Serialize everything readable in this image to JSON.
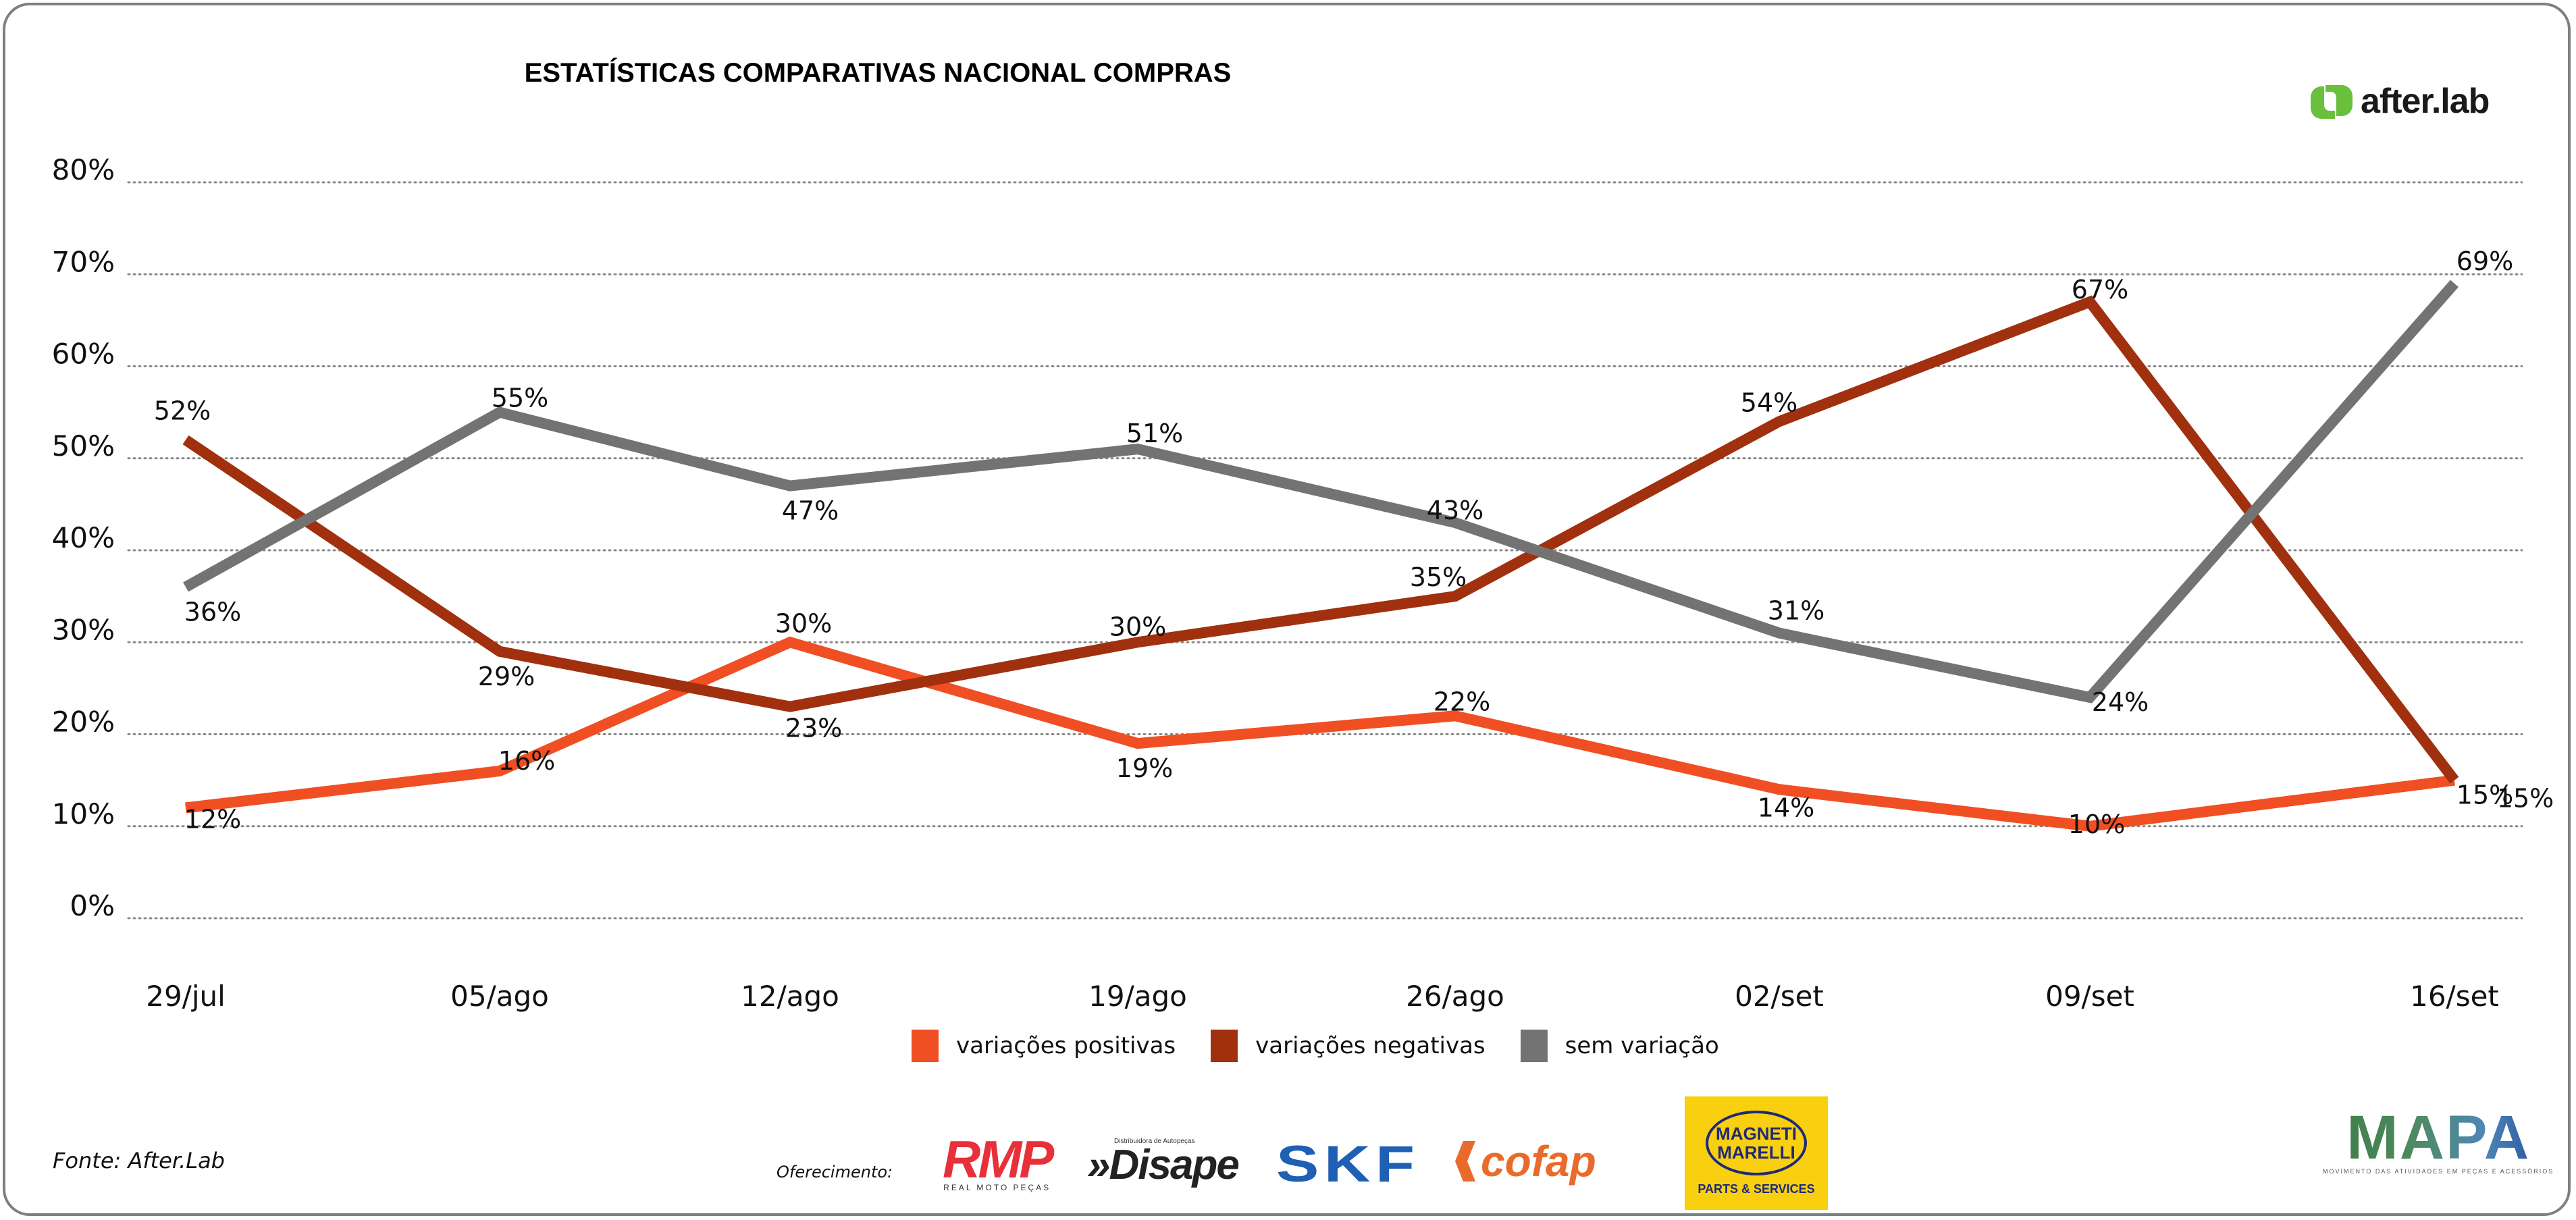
{
  "header": {
    "title": "ESTATÍSTICAS COMPARATIVAS NACIONAL COMPRAS",
    "brand": "after.lab",
    "brand_color": "#6abf3c"
  },
  "chart_data": {
    "type": "line",
    "title": "ESTATÍSTICAS COMPARATIVAS NACIONAL COMPRAS",
    "xlabel": "",
    "ylabel": "",
    "x": [
      "29/jul",
      "05/ago",
      "12/ago",
      "19/ago",
      "26/ago",
      "02/set",
      "09/set",
      "16/set"
    ],
    "ylim": [
      0,
      80
    ],
    "yticks": [
      0,
      10,
      20,
      30,
      40,
      50,
      60,
      70,
      80
    ],
    "ytick_labels": [
      "0%",
      "10%",
      "20%",
      "30%",
      "40%",
      "50%",
      "60%",
      "70%",
      "80%"
    ],
    "grid": true,
    "grid_style": "dotted",
    "legend_position": "bottom",
    "series": [
      {
        "name": "variações positivas",
        "color": "#f04e23",
        "values": [
          12,
          16,
          30,
          19,
          22,
          14,
          10,
          15
        ],
        "labels": [
          "12%",
          "16%",
          "30%",
          "19%",
          "22%",
          "14%",
          "10%",
          "15%"
        ]
      },
      {
        "name": "variações negativas",
        "color": "#a0300e",
        "values": [
          52,
          29,
          23,
          30,
          35,
          54,
          67,
          15
        ],
        "labels": [
          "52%",
          "29%",
          "23%",
          "30%",
          "35%",
          "54%",
          "67%",
          "15%"
        ]
      },
      {
        "name": "sem variação",
        "color": "#737373",
        "values": [
          36,
          55,
          47,
          51,
          43,
          31,
          24,
          69
        ],
        "labels": [
          "36%",
          "55%",
          "47%",
          "51%",
          "43%",
          "31%",
          "24%",
          "69%"
        ]
      }
    ]
  },
  "footer": {
    "source": "Fonte: After.Lab",
    "offer_label": "Oferecimento:",
    "sponsors": {
      "rmp": {
        "name": "RMP",
        "tagline": "REAL MOTO PEÇAS"
      },
      "disape": {
        "name": "Disape",
        "tagline": "Distribuidora de Autopeças"
      },
      "skf": {
        "name": "SKF"
      },
      "cofap": {
        "name": "cofap"
      },
      "marelli": {
        "line1": "MAGNETI",
        "line2": "MARELLI",
        "tagline": "PARTS & SERVICES"
      }
    },
    "mapa": {
      "name": "MAPA",
      "tagline": "MOVIMENTO DAS ATIVIDADES EM PEÇAS E ACESSÓRIOS"
    }
  }
}
